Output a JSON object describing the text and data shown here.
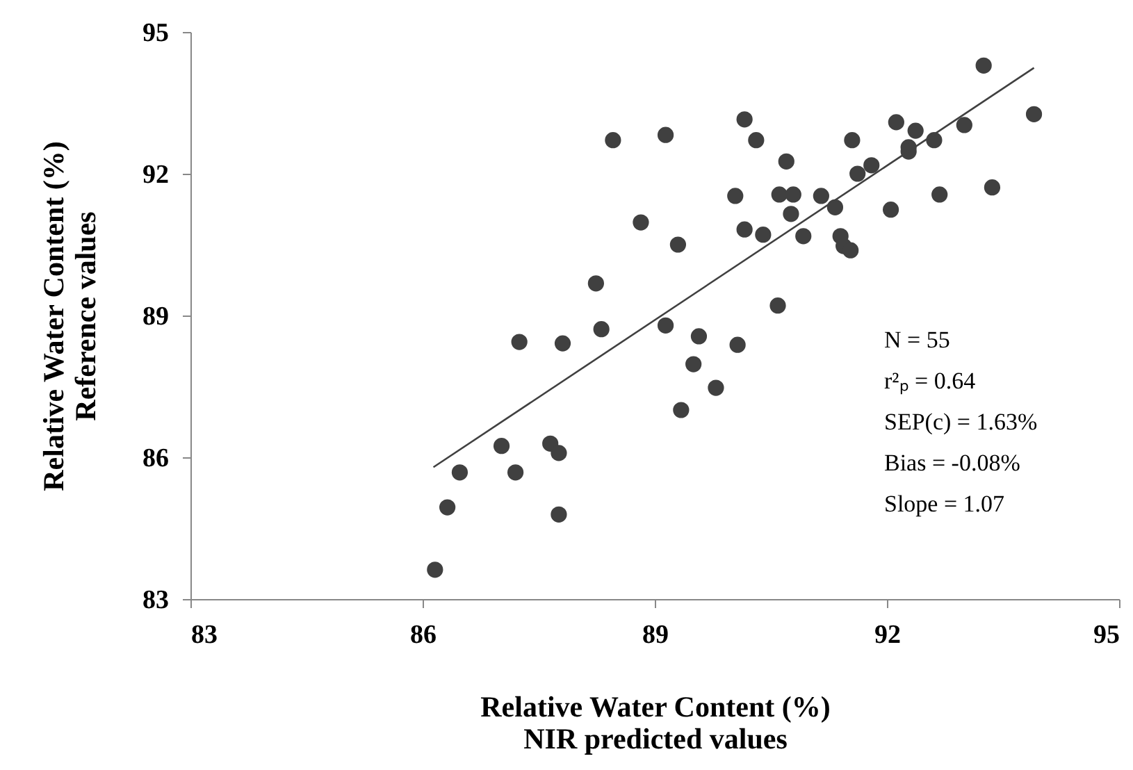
{
  "chart_data": {
    "type": "scatter",
    "xlabel": "Relative Water Content (%)\nNIR predicted values",
    "ylabel": "Relative Water Content (%)\nReference values",
    "xlim": [
      83,
      95
    ],
    "xticks": [
      83,
      86,
      89,
      92,
      95
    ],
    "ylim": [
      83,
      95
    ],
    "yticks": [
      83,
      86,
      89,
      92,
      95
    ],
    "grid": false,
    "annotations": [
      "N = 55",
      "r²ₚ = 0.64",
      "SEP(c) = 1.63%",
      "Bias = -0.08%",
      "Slope = 1.07"
    ],
    "series": [
      {
        "color": "#404040",
        "marker": "circle",
        "x": [
          86.16,
          86.32,
          86.48,
          87.02,
          87.2,
          87.25,
          87.65,
          87.76,
          87.76,
          87.81,
          88.24,
          88.31,
          88.46,
          88.82,
          89.14,
          89.14,
          89.3,
          89.34,
          89.5,
          89.57,
          89.79,
          90.07,
          90.59,
          90.04,
          90.16,
          90.16,
          90.31,
          90.4,
          90.61,
          90.7,
          90.76,
          90.79,
          90.92,
          91.15,
          91.33,
          91.4,
          91.44,
          91.53,
          91.55,
          91.62,
          91.8,
          92.05,
          92.12,
          92.28,
          92.28,
          92.37,
          92.61,
          92.68,
          93.0,
          93.25,
          93.36,
          93.9
        ],
        "values": [
          83.62,
          84.94,
          85.68,
          86.24,
          85.68,
          88.44,
          86.29,
          86.09,
          84.79,
          88.41,
          89.68,
          88.71,
          92.71,
          90.97,
          92.82,
          88.79,
          90.5,
          87.0,
          87.97,
          88.56,
          87.47,
          88.38,
          89.21,
          91.53,
          90.82,
          93.15,
          92.71,
          90.71,
          91.56,
          92.26,
          91.15,
          91.56,
          90.68,
          91.53,
          91.29,
          90.68,
          90.47,
          90.38,
          92.71,
          92.0,
          92.18,
          91.24,
          93.09,
          92.56,
          92.47,
          92.91,
          92.71,
          91.56,
          93.03,
          94.29,
          91.71,
          93.26
        ]
      },
      {
        "type": "line",
        "color": "#404040",
        "x": [
          86.14,
          93.9
        ],
        "values": [
          85.79,
          94.24
        ]
      }
    ]
  }
}
